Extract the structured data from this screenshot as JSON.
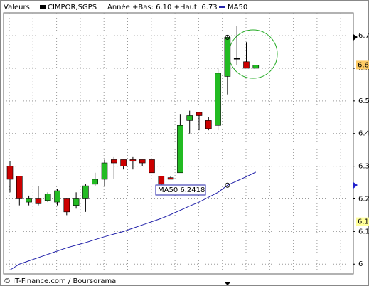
{
  "chart_data": {
    "type": "candlestick",
    "header": [
      "Valeurs",
      "CIMPOR,SGPS",
      "Année +Bas: 6.10 +Haut: 6.73"
    ],
    "footer": "© IT-Finance.com / Boursorama",
    "annotation": "MA50  6.2418",
    "up_color": "#22bb22",
    "down_color": "#cc0000",
    "candles": {
      "open": [
        6.3,
        6.27,
        6.19,
        6.2,
        6.195,
        6.19,
        6.2,
        6.18,
        6.2,
        6.245,
        6.26,
        6.32,
        6.32,
        6.32,
        6.32,
        6.32,
        6.27,
        6.265,
        6.28,
        6.44,
        6.465,
        6.44,
        6.425,
        6.575,
        6.63,
        6.62,
        6.6
      ],
      "high": [
        6.315,
        6.27,
        6.21,
        6.24,
        6.22,
        6.23,
        6.2,
        6.22,
        6.245,
        6.28,
        6.32,
        6.33,
        6.32,
        6.33,
        6.32,
        6.32,
        6.27,
        6.27,
        6.46,
        6.47,
        6.465,
        6.45,
        6.6,
        6.7,
        6.73,
        6.68,
        6.61
      ],
      "low": [
        6.22,
        6.18,
        6.18,
        6.18,
        6.19,
        6.18,
        6.15,
        6.17,
        6.16,
        6.24,
        6.24,
        6.26,
        6.29,
        6.29,
        6.3,
        6.28,
        6.24,
        6.26,
        6.28,
        6.4,
        6.41,
        6.41,
        6.41,
        6.52,
        6.61,
        6.6,
        6.6
      ],
      "close": [
        6.26,
        6.2,
        6.2,
        6.185,
        6.215,
        6.225,
        6.16,
        6.2,
        6.24,
        6.26,
        6.31,
        6.31,
        6.3,
        6.315,
        6.31,
        6.28,
        6.245,
        6.26,
        6.425,
        6.455,
        6.455,
        6.415,
        6.585,
        6.695,
        6.63,
        6.6,
        6.61
      ]
    },
    "series": [
      {
        "name": "MA50",
        "color": "#2222aa",
        "values": [
          5.982,
          6.0,
          6.01,
          6.02,
          6.03,
          6.04,
          6.05,
          6.058,
          6.066,
          6.075,
          6.084,
          6.092,
          6.1,
          6.11,
          6.12,
          6.13,
          6.14,
          6.152,
          6.165,
          6.178,
          6.19,
          6.205,
          6.22,
          6.2418,
          6.255,
          6.268,
          6.282
        ]
      }
    ],
    "price_markers": [
      {
        "value": 6.61,
        "label": "6.6",
        "color": "#ffcc66"
      },
      {
        "value": 6.13,
        "label": "6.1",
        "color": "#ffff99"
      }
    ],
    "ylim": [
      5.97,
      6.77
    ],
    "yticks": [
      6,
      6.1,
      6.2,
      6.3,
      6.4,
      6.5,
      6.6,
      6.7
    ],
    "grid": true
  }
}
